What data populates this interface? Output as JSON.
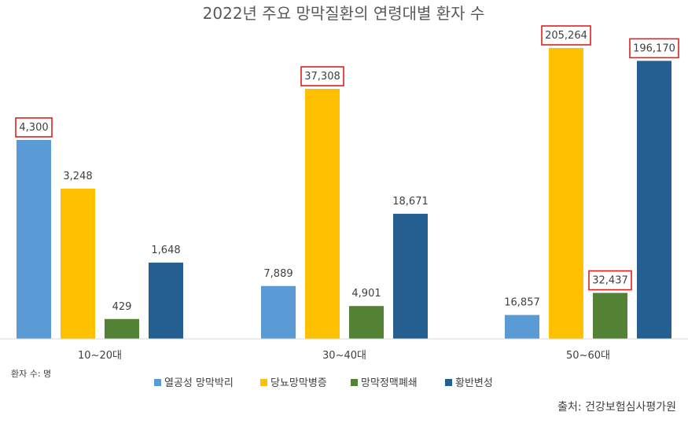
{
  "chart_data": {
    "type": "bar",
    "title": "2022년 주요 망막질환의 연령대별 환자 수",
    "categories": [
      "10~20대",
      "30~40대",
      "50~60대"
    ],
    "series": [
      {
        "name": "열공성 망막박리",
        "values": [
          4300,
          7889,
          16857
        ],
        "value_labels": [
          "4,300",
          "7,889",
          "16,857"
        ],
        "color": "#5B9BD5"
      },
      {
        "name": "당뇨망막병증",
        "values": [
          3248,
          37308,
          205264
        ],
        "value_labels": [
          "3,248",
          "37,308",
          "205,264"
        ],
        "color": "#FFC000"
      },
      {
        "name": "망막정맥폐쇄",
        "values": [
          429,
          4901,
          32437
        ],
        "value_labels": [
          "429",
          "4,901",
          "32,437"
        ],
        "color": "#548235"
      },
      {
        "name": "황반변성",
        "values": [
          1648,
          18671,
          196170
        ],
        "value_labels": [
          "1,648",
          "18,671",
          "196,170"
        ],
        "color": "#255E91"
      }
    ],
    "highlighted": [
      {
        "series": 0,
        "category": 0
      },
      {
        "series": 1,
        "category": 1
      },
      {
        "series": 1,
        "category": 2
      },
      {
        "series": 2,
        "category": 2
      },
      {
        "series": 3,
        "category": 2
      }
    ],
    "highlight_color": "#E02020",
    "scale_note": "per-category scale",
    "legend_position": "bottom",
    "grid": false,
    "unit_label": "환자 수: 명",
    "source": "출처: 건강보험심사평가원"
  }
}
